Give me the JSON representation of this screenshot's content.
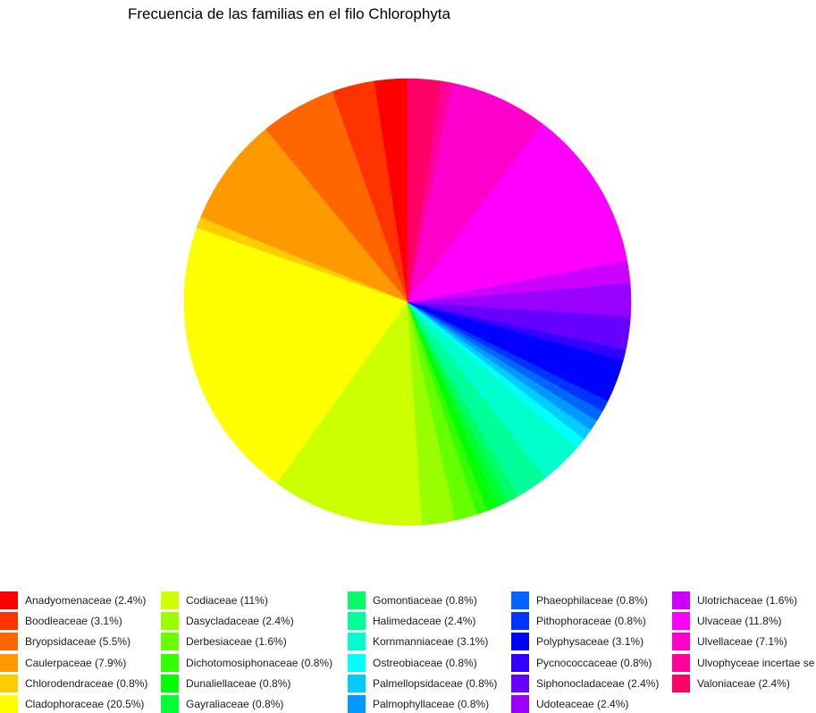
{
  "chart_data": {
    "type": "pie",
    "title": "Frecuencia de las familias en el filo Chlorophyta",
    "legend_position": "bottom",
    "slices": [
      {
        "label": "Anadyomenaceae (2.4%)",
        "value": 2.4,
        "color": "#FF0000"
      },
      {
        "label": "Boodleaceae (3.1%)",
        "value": 3.1,
        "color": "#FF3300"
      },
      {
        "label": "Bryopsidaceae (5.5%)",
        "value": 5.5,
        "color": "#FF6600"
      },
      {
        "label": "Caulerpaceae (7.9%)",
        "value": 7.9,
        "color": "#FF9900"
      },
      {
        "label": "Chlorodendraceae (0.8%)",
        "value": 0.8,
        "color": "#FFCC00"
      },
      {
        "label": "Cladophoraceae (20.5%)",
        "value": 20.5,
        "color": "#FFFF00"
      },
      {
        "label": "Codiaceae (11%)",
        "value": 11.0,
        "color": "#CCFF00"
      },
      {
        "label": "Dasycladaceae (2.4%)",
        "value": 2.4,
        "color": "#99FF00"
      },
      {
        "label": "Derbesiaceae (1.6%)",
        "value": 1.6,
        "color": "#66FF00"
      },
      {
        "label": "Dichotomosiphonaceae (0.8%)",
        "value": 0.8,
        "color": "#33FF00"
      },
      {
        "label": "Dunaliellaceae (0.8%)",
        "value": 0.8,
        "color": "#00FF00"
      },
      {
        "label": "Gayraliaceae (0.8%)",
        "value": 0.8,
        "color": "#00FF33"
      },
      {
        "label": "Gomontiaceae (0.8%)",
        "value": 0.8,
        "color": "#00FF66"
      },
      {
        "label": "Halimedaceae (2.4%)",
        "value": 2.4,
        "color": "#00FF99"
      },
      {
        "label": "Kornmanniaceae (3.1%)",
        "value": 3.1,
        "color": "#00FFCC"
      },
      {
        "label": "Ostreobiaceae (0.8%)",
        "value": 0.8,
        "color": "#00FFFF"
      },
      {
        "label": "Palmellopsidaceae (0.8%)",
        "value": 0.8,
        "color": "#00CCFF"
      },
      {
        "label": "Palmophyllaceae (0.8%)",
        "value": 0.8,
        "color": "#0099FF"
      },
      {
        "label": "Phaeophilaceae (0.8%)",
        "value": 0.8,
        "color": "#0066FF"
      },
      {
        "label": "Pithophoraceae (0.8%)",
        "value": 0.8,
        "color": "#0033FF"
      },
      {
        "label": "Polyphysaceae (3.1%)",
        "value": 3.1,
        "color": "#0000FF"
      },
      {
        "label": "Pycnococcaceae (0.8%)",
        "value": 0.8,
        "color": "#3300FF"
      },
      {
        "label": "Siphonocladaceae (2.4%)",
        "value": 2.4,
        "color": "#6600FF"
      },
      {
        "label": "Udoteaceae (2.4%)",
        "value": 2.4,
        "color": "#9900FF"
      },
      {
        "label": "Ulotrichaceae (1.6%)",
        "value": 1.6,
        "color": "#CC00FF"
      },
      {
        "label": "Ulvaceae (11.8%)",
        "value": 11.8,
        "color": "#FF00FF"
      },
      {
        "label": "Ulvellaceae (7.1%)",
        "value": 7.1,
        "color": "#FF00CC"
      },
      {
        "label": "Ulvophyceae incertae se",
        "value": 0.8,
        "color": "#FF0099"
      },
      {
        "label": "Valoniaceae (2.4%)",
        "value": 2.4,
        "color": "#FF0066"
      }
    ]
  }
}
